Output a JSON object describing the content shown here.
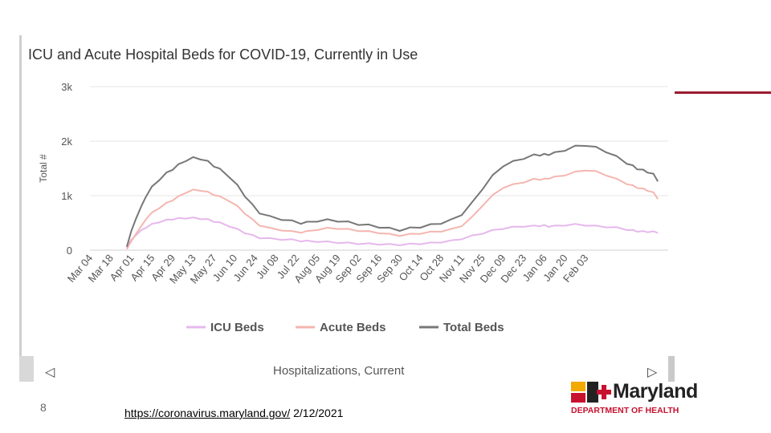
{
  "slide": {
    "number": "8",
    "source_link": "https://coronavirus.maryland.gov/",
    "source_date": "2/12/2021",
    "footer_label": "Hospitalizations, Current",
    "nav_left": "◁",
    "nav_right": "▷",
    "logo_word": "Maryland",
    "logo_sub": "DEPARTMENT OF HEALTH"
  },
  "colors": {
    "icu": "#e6b8ec",
    "acute": "#f4b6b0",
    "total": "#777777",
    "accent": "#9b1b30",
    "grid": "#e6e6e6"
  },
  "chart_data": {
    "type": "line",
    "title": "ICU and Acute Hospital Beds for COVID-19, Currently in Use",
    "ylabel": "Total #",
    "xlabel": "",
    "ylim": [
      0,
      3000
    ],
    "yticks": [
      {
        "value": 0,
        "label": "0"
      },
      {
        "value": 1000,
        "label": "1k"
      },
      {
        "value": 2000,
        "label": "2k"
      },
      {
        "value": 3000,
        "label": "3k"
      }
    ],
    "x_start_label": "Mar 04",
    "x_tick_labels": [
      "Mar 04",
      "Mar 18",
      "Apr 01",
      "Apr 15",
      "Apr 29",
      "May 13",
      "May 27",
      "Jun 10",
      "Jun 24",
      "Jul 08",
      "Jul 22",
      "Aug 05",
      "Aug 19",
      "Sep 02",
      "Sep 16",
      "Sep 30",
      "Oct 14",
      "Oct 28",
      "Nov 11",
      "Nov 25",
      "Dec 09",
      "Dec 23",
      "Jan 06",
      "Jan 20",
      "Feb 03"
    ],
    "day_offsets": [
      25,
      28,
      31,
      35,
      38,
      42,
      47,
      52,
      56,
      60,
      65,
      70,
      75,
      80,
      84,
      88,
      95,
      100,
      105,
      110,
      115,
      122,
      130,
      137,
      143,
      147,
      154,
      161,
      168,
      175,
      182,
      189,
      196,
      203,
      210,
      217,
      224,
      231,
      238,
      245,
      252,
      259,
      266,
      273,
      280,
      287,
      294,
      301,
      305,
      308,
      311,
      315,
      322,
      329,
      336,
      343,
      350,
      357,
      364,
      368,
      371,
      375,
      378,
      382,
      385
    ],
    "series": [
      {
        "name": "ICU Beds",
        "values": [
          50,
          180,
          280,
          360,
          420,
          470,
          520,
          550,
          570,
          580,
          590,
          590,
          580,
          560,
          530,
          500,
          440,
          380,
          320,
          270,
          230,
          210,
          200,
          190,
          170,
          165,
          160,
          150,
          140,
          130,
          120,
          115,
          110,
          105,
          100,
          110,
          120,
          130,
          150,
          170,
          210,
          260,
          310,
          360,
          400,
          420,
          440,
          440,
          450,
          450,
          440,
          440,
          460,
          470,
          460,
          440,
          430,
          410,
          380,
          360,
          350,
          340,
          340,
          335,
          330
        ]
      },
      {
        "name": "Acute Beds",
        "values": [
          30,
          150,
          300,
          440,
          580,
          680,
          780,
          860,
          920,
          980,
          1060,
          1100,
          1100,
          1060,
          1020,
          980,
          900,
          800,
          680,
          560,
          460,
          400,
          370,
          340,
          330,
          340,
          380,
          400,
          400,
          380,
          360,
          340,
          320,
          290,
          270,
          290,
          310,
          330,
          350,
          380,
          450,
          600,
          820,
          1000,
          1150,
          1200,
          1250,
          1300,
          1300,
          1300,
          1320,
          1340,
          1380,
          1430,
          1470,
          1440,
          1380,
          1300,
          1220,
          1180,
          1150,
          1120,
          1100,
          1050,
          950
        ]
      },
      {
        "name": "Total Beds",
        "values": [
          80,
          330,
          580,
          800,
          1000,
          1150,
          1300,
          1410,
          1490,
          1560,
          1650,
          1690,
          1680,
          1620,
          1550,
          1480,
          1340,
          1180,
          1000,
          830,
          690,
          610,
          570,
          530,
          500,
          505,
          540,
          550,
          540,
          510,
          480,
          455,
          430,
          395,
          370,
          400,
          430,
          460,
          500,
          550,
          660,
          860,
          1130,
          1360,
          1550,
          1620,
          1690,
          1740,
          1750,
          1750,
          1760,
          1780,
          1840,
          1900,
          1930,
          1880,
          1810,
          1710,
          1600,
          1540,
          1500,
          1460,
          1440,
          1385,
          1280
        ]
      }
    ],
    "legend": [
      "ICU Beds",
      "Acute Beds",
      "Total Beds"
    ],
    "legend_position": "bottom",
    "grid": true
  }
}
